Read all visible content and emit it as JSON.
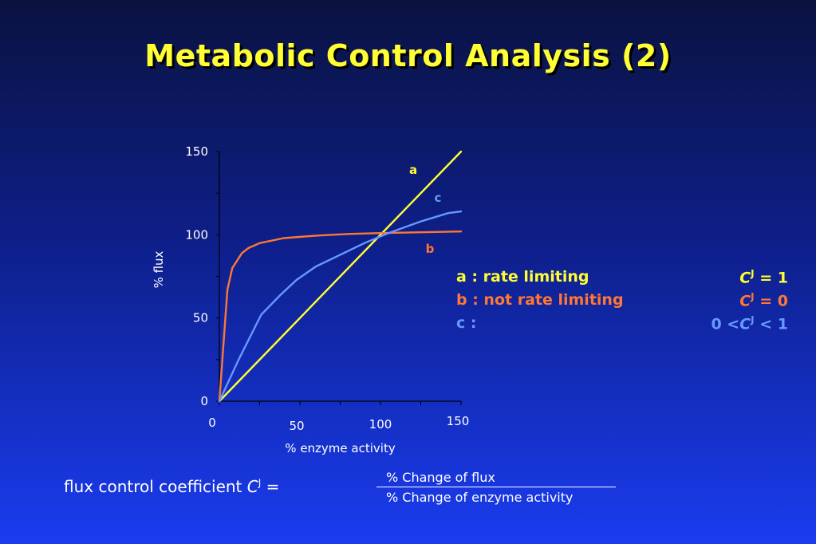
{
  "title": "Metabolic Control Analysis  (2)",
  "chart_data": {
    "type": "line",
    "xlabel": "% enzyme activity",
    "ylabel": "% flux",
    "xlim": [
      0,
      150
    ],
    "ylim": [
      0,
      150
    ],
    "x_ticks": [
      0,
      50,
      100,
      150
    ],
    "y_ticks": [
      0,
      50,
      100,
      150
    ],
    "grid": false,
    "series": [
      {
        "name": "a",
        "color": "#ffff33",
        "x": [
          0,
          150
        ],
        "y": [
          0,
          150
        ]
      },
      {
        "name": "b",
        "color": "#ff7733",
        "x": [
          0,
          5,
          8,
          14,
          18,
          25,
          40,
          60,
          80,
          100,
          150
        ],
        "y": [
          0,
          67,
          80,
          89,
          92,
          95,
          98,
          99.5,
          100.5,
          101,
          102
        ]
      },
      {
        "name": "c",
        "color": "#6699ff",
        "x": [
          0,
          12,
          26,
          38,
          48,
          60,
          75,
          90,
          105,
          125,
          142,
          150
        ],
        "y": [
          0,
          25,
          52,
          64,
          73,
          81,
          88,
          95,
          101,
          108,
          113,
          114
        ]
      }
    ]
  },
  "legend": {
    "rows": [
      {
        "desc": "a : rate limiting",
        "coef_pre": "",
        "coef_sym": "C",
        "coef_sup": "J",
        "coef_post": " = 1",
        "color": "#ffff33"
      },
      {
        "desc": "b : not rate limiting",
        "coef_pre": "",
        "coef_sym": "C",
        "coef_sup": "J",
        "coef_post": " = 0",
        "color": "#ff7733"
      },
      {
        "desc": "c :",
        "coef_pre": "0 <",
        "coef_sym": "C",
        "coef_sup": "J",
        "coef_post": " < 1",
        "color": "#6699ff"
      }
    ]
  },
  "formula": {
    "label": "flux control coefficient  ",
    "symbol": "C",
    "sup": "J",
    "equals": " =",
    "numerator": "%   Change of flux",
    "denominator": "% Change of enzyme activity"
  }
}
